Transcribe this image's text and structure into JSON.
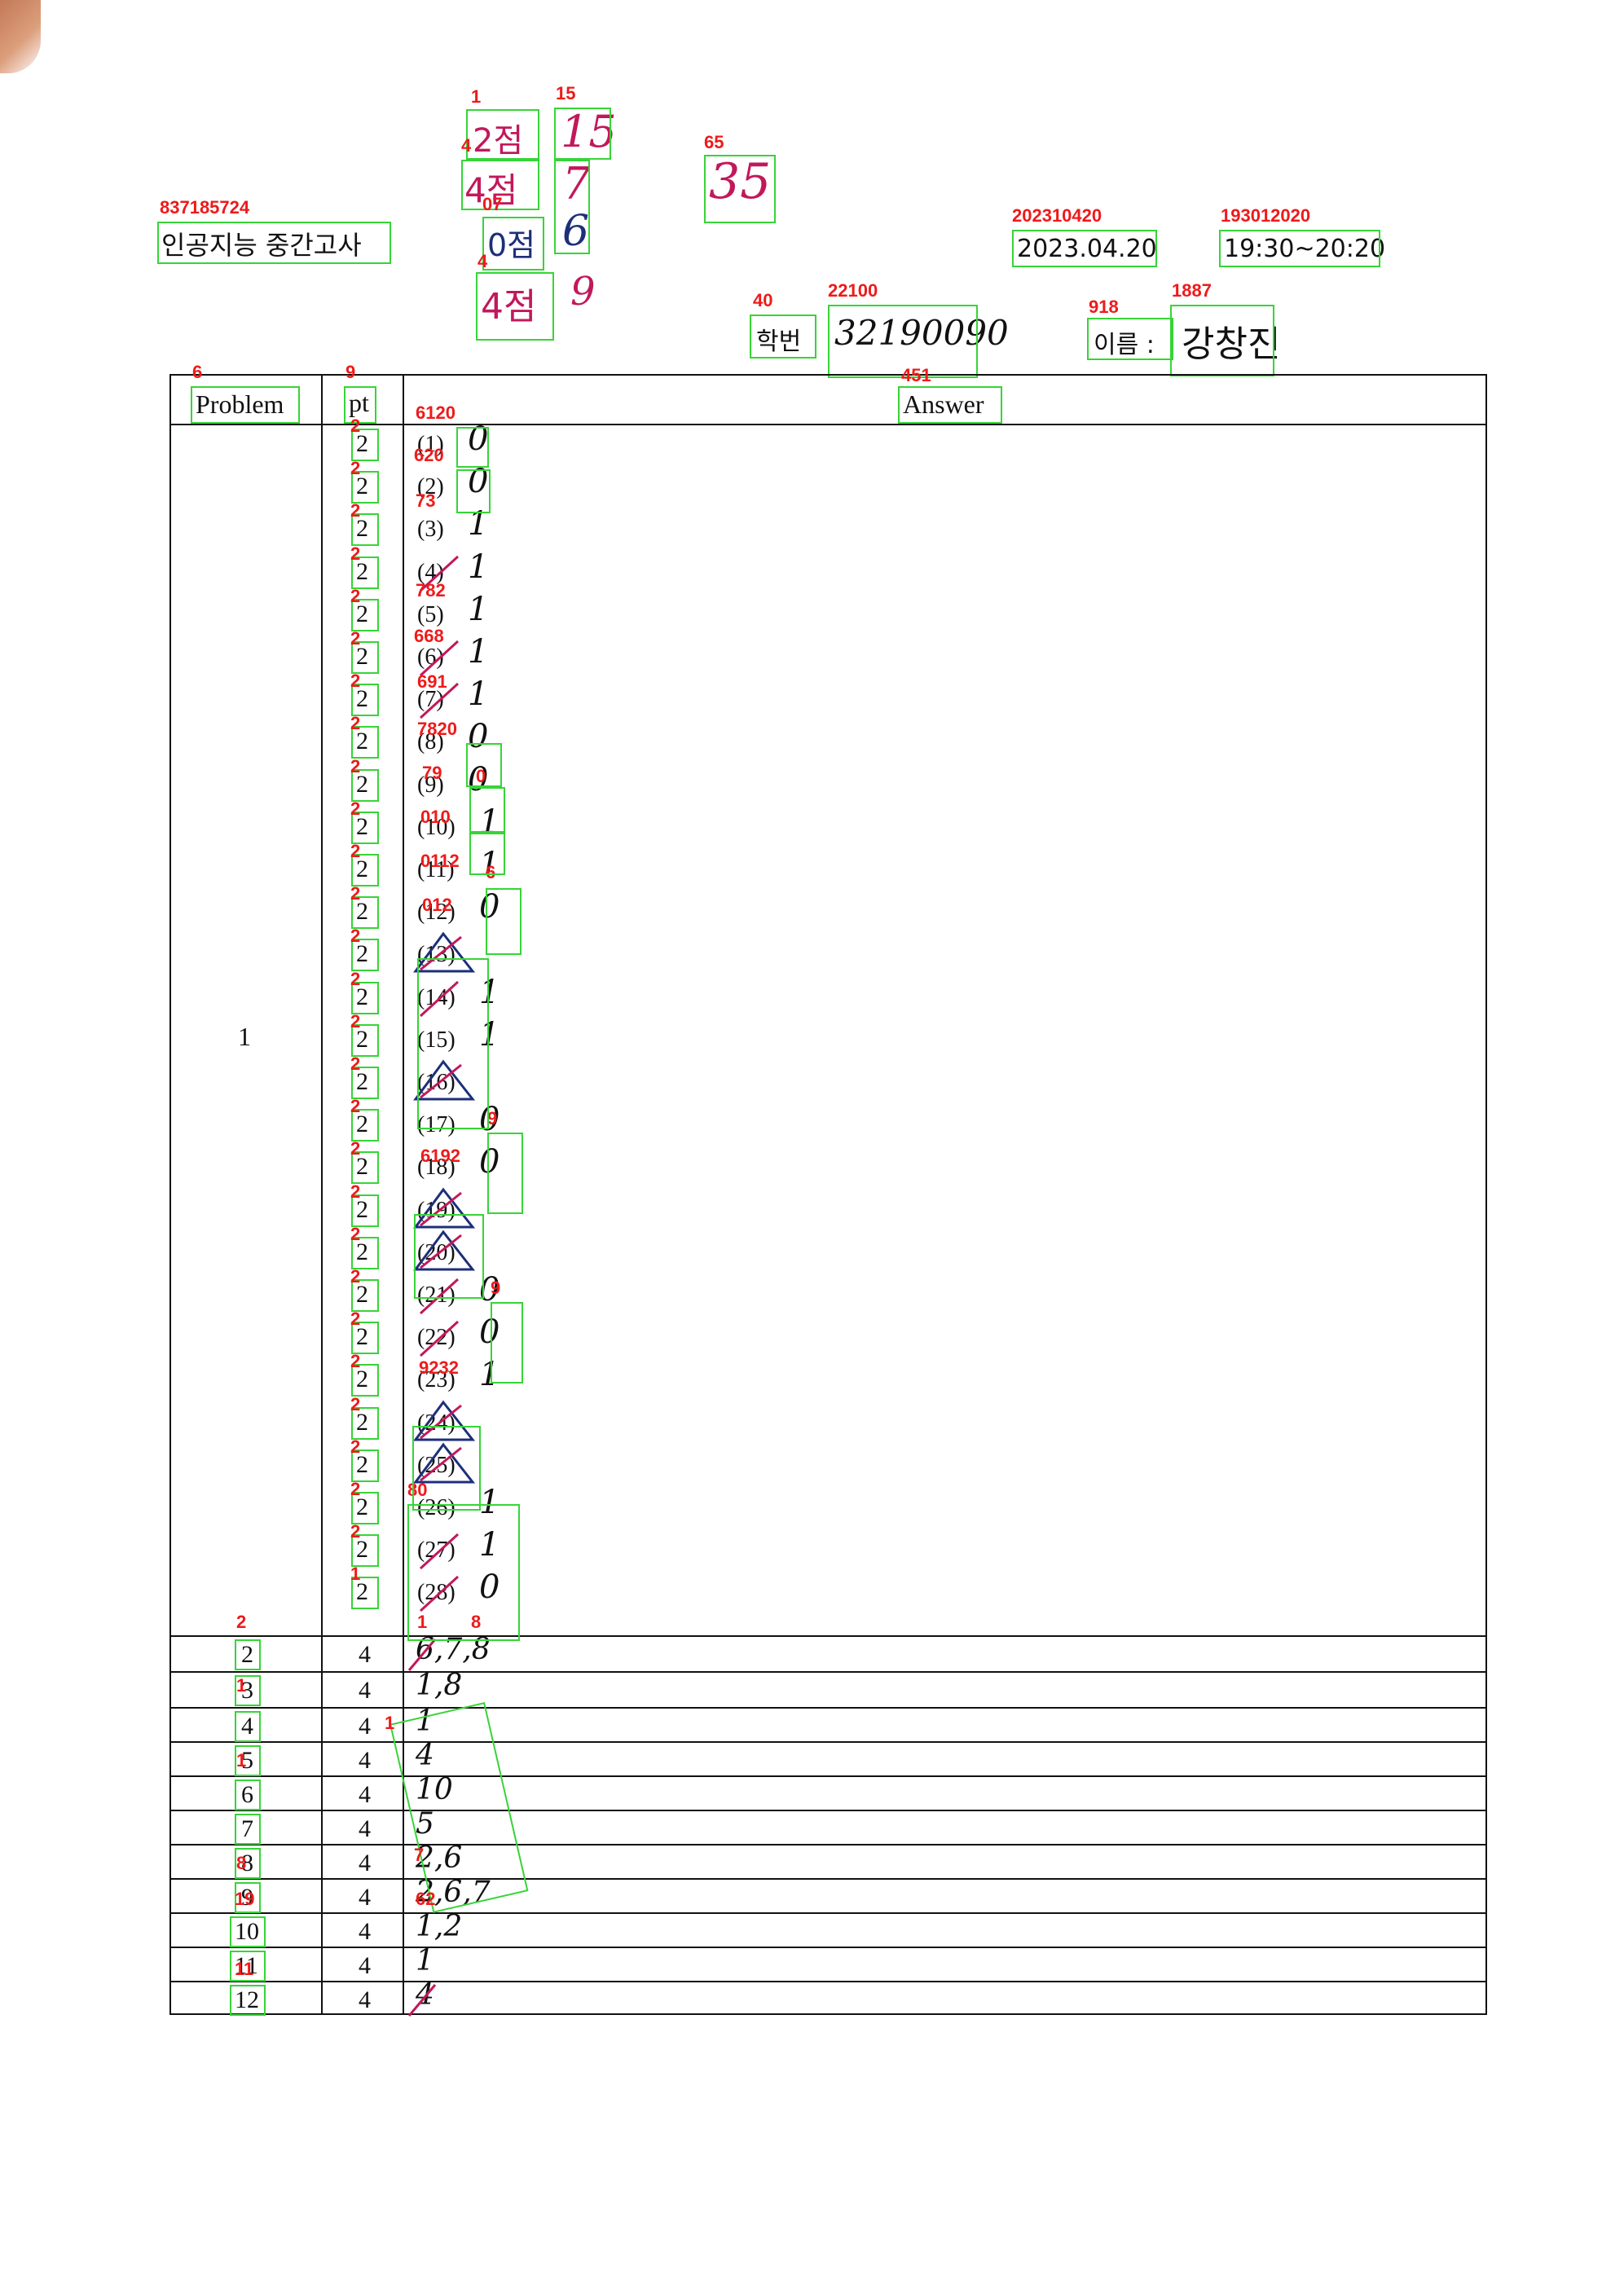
{
  "header": {
    "title": "인공지능 중간고사",
    "date": "2023.04.20",
    "time": "19:30~20:20",
    "student_id_label": "학번",
    "student_id_value": "32190090",
    "name_label": "이름 :",
    "name_value": "강창진"
  },
  "score_marks": {
    "s1": "2점",
    "s2": "15",
    "s3": "4점",
    "s4": "7",
    "s5": "0점",
    "s6": "6",
    "s7": "4점",
    "s8": "9",
    "total": "35"
  },
  "annotations": {
    "title": "837185724",
    "date": "202310420",
    "time": "193012020",
    "student_id_label": "40",
    "student_id_value": "22100",
    "name_label": "918",
    "name_value": "1887",
    "problem_header": "6",
    "pt_header": "9",
    "answer_header": "451",
    "s1": "1",
    "s2": "15",
    "s3": "4",
    "s5": "07",
    "s7": "4",
    "total": "65",
    "q_1_3": "6120",
    "q_2": "620",
    "q_3": "73",
    "q_5": "782",
    "q_6": "668",
    "q_7": "691",
    "q_8": "7820",
    "q_9": "79",
    "q_9_ans": "0",
    "q_10": "010",
    "q_11": "0112",
    "q_11_ans": "6",
    "q_12": "012",
    "q_17": "6192",
    "q_17_ans": "9",
    "q_21_ans": "9",
    "q_23": "9232",
    "q_26": "80",
    "p2": "2",
    "p2_ans": "1",
    "p2_ans2": "8",
    "p3": "1",
    "p5": "1",
    "p5_ans": "1",
    "p8": "8",
    "p8_ans": "7",
    "p9": "19",
    "p10_ans": "62",
    "p11": "11",
    "pt_small": "2",
    "pt_small_last": "1"
  },
  "table": {
    "headers": {
      "problem": "Problem",
      "pt": "pt",
      "answer": "Answer"
    },
    "problem1": {
      "number": "1",
      "pt": "2",
      "questions": [
        {
          "label": "(1)",
          "answer": "0",
          "mark": "none"
        },
        {
          "label": "(2)",
          "answer": "0",
          "mark": "none"
        },
        {
          "label": "(3)",
          "answer": "1",
          "mark": "none"
        },
        {
          "label": "(4)",
          "answer": "1",
          "mark": "slash"
        },
        {
          "label": "(5)",
          "answer": "1",
          "mark": "none"
        },
        {
          "label": "(6)",
          "answer": "1",
          "mark": "slash"
        },
        {
          "label": "(7)",
          "answer": "1",
          "mark": "slash"
        },
        {
          "label": "(8)",
          "answer": "0",
          "mark": "none"
        },
        {
          "label": "(9)",
          "answer": "0",
          "mark": "none"
        },
        {
          "label": "(10)",
          "answer": "1",
          "mark": "none"
        },
        {
          "label": "(11)",
          "answer": "1",
          "mark": "none"
        },
        {
          "label": "(12)",
          "answer": "0",
          "mark": "none"
        },
        {
          "label": "(13)",
          "answer": "",
          "mark": "triangle"
        },
        {
          "label": "(14)",
          "answer": "1",
          "mark": "slash"
        },
        {
          "label": "(15)",
          "answer": "1",
          "mark": "none"
        },
        {
          "label": "(16)",
          "answer": "",
          "mark": "triangle"
        },
        {
          "label": "(17)",
          "answer": "0",
          "mark": "none"
        },
        {
          "label": "(18)",
          "answer": "0",
          "mark": "none"
        },
        {
          "label": "(19)",
          "answer": "",
          "mark": "triangle"
        },
        {
          "label": "(20)",
          "answer": "",
          "mark": "triangle"
        },
        {
          "label": "(21)",
          "answer": "0",
          "mark": "slash"
        },
        {
          "label": "(22)",
          "answer": "0",
          "mark": "slash"
        },
        {
          "label": "(23)",
          "answer": "1",
          "mark": "none"
        },
        {
          "label": "(24)",
          "answer": "",
          "mark": "triangle"
        },
        {
          "label": "(25)",
          "answer": "",
          "mark": "triangle"
        },
        {
          "label": "(26)",
          "answer": "1",
          "mark": "none"
        },
        {
          "label": "(27)",
          "answer": "1",
          "mark": "slash"
        },
        {
          "label": "(28)",
          "answer": "0",
          "mark": "slash"
        }
      ]
    },
    "rows": [
      {
        "problem": "2",
        "pt": "4",
        "answer": "6,7,8",
        "mark": "slash"
      },
      {
        "problem": "3",
        "pt": "4",
        "answer": "1,8",
        "mark": "none"
      },
      {
        "problem": "4",
        "pt": "4",
        "answer": "1",
        "mark": "none"
      },
      {
        "problem": "5",
        "pt": "4",
        "answer": "4",
        "mark": "none"
      },
      {
        "problem": "6",
        "pt": "4",
        "answer": "10",
        "mark": "none"
      },
      {
        "problem": "7",
        "pt": "4",
        "answer": "5",
        "mark": "none"
      },
      {
        "problem": "8",
        "pt": "4",
        "answer": "2,6",
        "mark": "none"
      },
      {
        "problem": "9",
        "pt": "4",
        "answer": "2,6,7",
        "mark": "none"
      },
      {
        "problem": "10",
        "pt": "4",
        "answer": "1,2",
        "mark": "none"
      },
      {
        "problem": "11",
        "pt": "4",
        "answer": "1",
        "mark": "none"
      },
      {
        "problem": "12",
        "pt": "4",
        "answer": "4",
        "mark": "slash"
      }
    ]
  },
  "colors": {
    "box": "#37d437",
    "label": "#ee1a1a",
    "red_ink": "#c2185b",
    "blue_ink": "#1d2f7a"
  }
}
